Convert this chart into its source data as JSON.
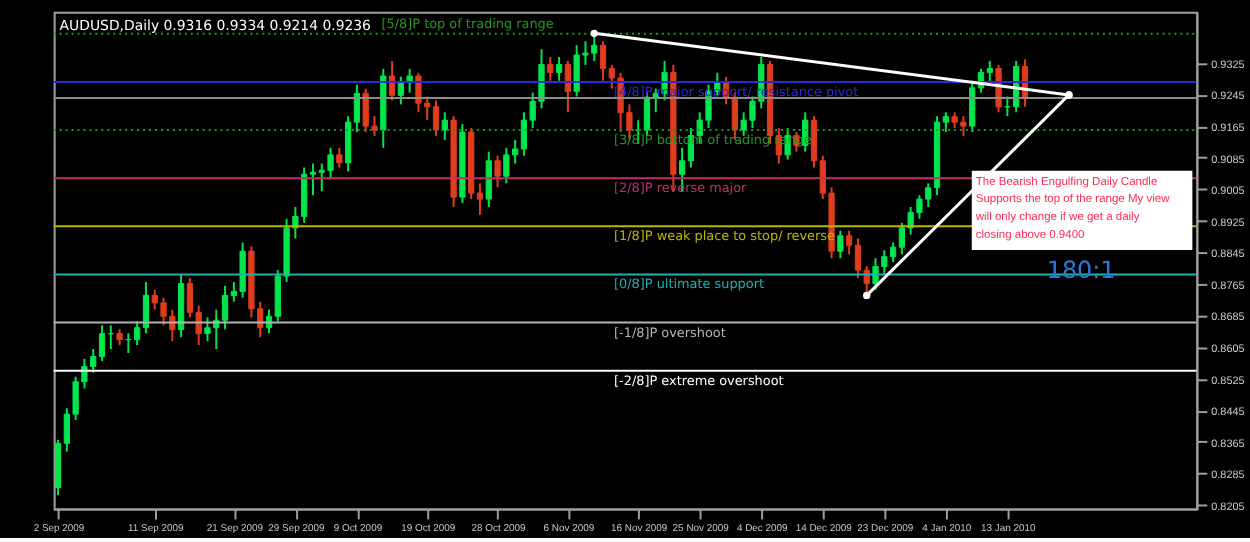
{
  "chart_data": {
    "type": "candlestick",
    "title": "AUDUSD,Daily  0.9316 0.9334 0.9214 0.9236",
    "categories": [
      "2 Sep 2009",
      null,
      null,
      null,
      null,
      null,
      null,
      null,
      null,
      null,
      null,
      "11 Sep 2009",
      null,
      null,
      null,
      null,
      null,
      null,
      null,
      null,
      "21 Sep 2009",
      null,
      null,
      null,
      null,
      null,
      null,
      "29 Sep 2009",
      null,
      null,
      null,
      null,
      null,
      null,
      "9 Oct 2009",
      null,
      null,
      null,
      null,
      null,
      null,
      null,
      "19 Oct 2009",
      null,
      null,
      null,
      null,
      null,
      null,
      null,
      "28 Oct 2009",
      null,
      null,
      null,
      null,
      null,
      null,
      null,
      "6 Nov 2009",
      null,
      null,
      null,
      null,
      null,
      null,
      null,
      "16 Nov 2009",
      null,
      null,
      null,
      null,
      null,
      null,
      "25 Nov 2009",
      null,
      null,
      null,
      null,
      null,
      null,
      "4 Dec 2009",
      null,
      null,
      null,
      null,
      null,
      null,
      "14 Dec 2009",
      null,
      null,
      null,
      null,
      null,
      null,
      "23 Dec 2009",
      null,
      null,
      null,
      null,
      null,
      null,
      "4 Jan 2010",
      null,
      null,
      null,
      null,
      null,
      null,
      "13 Jan 2010",
      null,
      null,
      null,
      null,
      null,
      null,
      null,
      null,
      null,
      null,
      null,
      null,
      null,
      null,
      null,
      null,
      null,
      null,
      null,
      null,
      null
    ],
    "ohlc": [
      [
        0.8249,
        0.837,
        0.823,
        0.8361
      ],
      [
        0.8361,
        0.845,
        0.834,
        0.8435
      ],
      [
        0.8435,
        0.853,
        0.842,
        0.8517
      ],
      [
        0.8517,
        0.8575,
        0.85,
        0.8556
      ],
      [
        0.8556,
        0.86,
        0.854,
        0.8581
      ],
      [
        0.8581,
        0.866,
        0.857,
        0.8639
      ],
      [
        0.8639,
        0.866,
        0.86,
        0.8639
      ],
      [
        0.8639,
        0.865,
        0.861,
        0.8624
      ],
      [
        0.8624,
        0.864,
        0.859,
        0.8624
      ],
      [
        0.8624,
        0.867,
        0.861,
        0.8654
      ],
      [
        0.8654,
        0.877,
        0.864,
        0.8736
      ],
      [
        0.8736,
        0.875,
        0.87,
        0.8717
      ],
      [
        0.8717,
        0.873,
        0.866,
        0.8683
      ],
      [
        0.8683,
        0.87,
        0.862,
        0.8649
      ],
      [
        0.8649,
        0.879,
        0.863,
        0.8766
      ],
      [
        0.8766,
        0.878,
        0.868,
        0.8693
      ],
      [
        0.8693,
        0.871,
        0.861,
        0.8639
      ],
      [
        0.8639,
        0.868,
        0.862,
        0.8654
      ],
      [
        0.8654,
        0.87,
        0.86,
        0.8673
      ],
      [
        0.8673,
        0.876,
        0.865,
        0.8736
      ],
      [
        0.8736,
        0.877,
        0.872,
        0.8746
      ],
      [
        0.8746,
        0.887,
        0.873,
        0.8848
      ],
      [
        0.8848,
        0.886,
        0.868,
        0.8702
      ],
      [
        0.8702,
        0.872,
        0.863,
        0.8654
      ],
      [
        0.8654,
        0.87,
        0.864,
        0.8683
      ],
      [
        0.8683,
        0.88,
        0.867,
        0.8785
      ],
      [
        0.8785,
        0.893,
        0.877,
        0.8907
      ],
      [
        0.8907,
        0.896,
        0.888,
        0.8936
      ],
      [
        0.8936,
        0.906,
        0.892,
        0.9043
      ],
      [
        0.9043,
        0.907,
        0.899,
        0.9048
      ],
      [
        0.9048,
        0.907,
        0.9,
        0.9053
      ],
      [
        0.9053,
        0.911,
        0.903,
        0.9092
      ],
      [
        0.9092,
        0.911,
        0.906,
        0.9072
      ],
      [
        0.9072,
        0.919,
        0.905,
        0.9175
      ],
      [
        0.9175,
        0.927,
        0.915,
        0.9248
      ],
      [
        0.9248,
        0.926,
        0.915,
        0.9165
      ],
      [
        0.9165,
        0.919,
        0.914,
        0.9155
      ],
      [
        0.9155,
        0.931,
        0.911,
        0.9292
      ],
      [
        0.9292,
        0.933,
        0.923,
        0.9243
      ],
      [
        0.9243,
        0.929,
        0.922,
        0.9277
      ],
      [
        0.9277,
        0.931,
        0.925,
        0.9292
      ],
      [
        0.9292,
        0.93,
        0.92,
        0.9223
      ],
      [
        0.9223,
        0.924,
        0.918,
        0.9214
      ],
      [
        0.9214,
        0.923,
        0.914,
        0.9155
      ],
      [
        0.9155,
        0.92,
        0.913,
        0.918
      ],
      [
        0.918,
        0.919,
        0.896,
        0.8985
      ],
      [
        0.8985,
        0.917,
        0.897,
        0.915
      ],
      [
        0.915,
        0.916,
        0.898,
        0.8995
      ],
      [
        0.8995,
        0.902,
        0.894,
        0.898
      ],
      [
        0.898,
        0.91,
        0.896,
        0.9077
      ],
      [
        0.9077,
        0.909,
        0.901,
        0.9038
      ],
      [
        0.9038,
        0.911,
        0.902,
        0.9092
      ],
      [
        0.9092,
        0.913,
        0.907,
        0.9107
      ],
      [
        0.9107,
        0.92,
        0.909,
        0.918
      ],
      [
        0.918,
        0.925,
        0.916,
        0.9228
      ],
      [
        0.9228,
        0.936,
        0.921,
        0.9321
      ],
      [
        0.9321,
        0.934,
        0.928,
        0.9301
      ],
      [
        0.9301,
        0.934,
        0.928,
        0.9321
      ],
      [
        0.9321,
        0.933,
        0.92,
        0.9253
      ],
      [
        0.9253,
        0.937,
        0.924,
        0.9345
      ],
      [
        0.9345,
        0.938,
        0.932,
        0.935
      ],
      [
        0.935,
        0.94,
        0.933,
        0.937
      ],
      [
        0.937,
        0.938,
        0.928,
        0.9311
      ],
      [
        0.9311,
        0.932,
        0.926,
        0.9287
      ],
      [
        0.9287,
        0.93,
        0.915,
        0.9199
      ],
      [
        0.9199,
        0.922,
        0.913,
        0.9155
      ],
      [
        0.9155,
        0.918,
        0.912,
        0.9155
      ],
      [
        0.9155,
        0.925,
        0.914,
        0.9238
      ],
      [
        0.9238,
        0.926,
        0.92,
        0.9248
      ],
      [
        0.9248,
        0.933,
        0.923,
        0.9301
      ],
      [
        0.9301,
        0.932,
        0.9,
        0.9043
      ],
      [
        0.9043,
        0.911,
        0.9,
        0.9077
      ],
      [
        0.9077,
        0.916,
        0.906,
        0.9141
      ],
      [
        0.9141,
        0.92,
        0.912,
        0.918
      ],
      [
        0.918,
        0.927,
        0.916,
        0.9253
      ],
      [
        0.9253,
        0.93,
        0.924,
        0.9277
      ],
      [
        0.9277,
        0.929,
        0.922,
        0.9238
      ],
      [
        0.9238,
        0.925,
        0.913,
        0.9155
      ],
      [
        0.9155,
        0.92,
        0.914,
        0.918
      ],
      [
        0.918,
        0.924,
        0.916,
        0.9228
      ],
      [
        0.9228,
        0.934,
        0.921,
        0.9321
      ],
      [
        0.9321,
        0.933,
        0.912,
        0.9141
      ],
      [
        0.9141,
        0.916,
        0.907,
        0.9092
      ],
      [
        0.9092,
        0.916,
        0.908,
        0.9141
      ],
      [
        0.9141,
        0.915,
        0.91,
        0.9116
      ],
      [
        0.9116,
        0.92,
        0.91,
        0.918
      ],
      [
        0.918,
        0.919,
        0.906,
        0.9077
      ],
      [
        0.9077,
        0.909,
        0.898,
        0.8995
      ],
      [
        0.8995,
        0.901,
        0.883,
        0.8848
      ],
      [
        0.8848,
        0.89,
        0.883,
        0.8887
      ],
      [
        0.8887,
        0.89,
        0.884,
        0.8863
      ],
      [
        0.8863,
        0.888,
        0.878,
        0.88
      ],
      [
        0.88,
        0.881,
        0.8736,
        0.8766
      ],
      [
        0.8766,
        0.883,
        0.875,
        0.8809
      ],
      [
        0.8809,
        0.885,
        0.879,
        0.8834
      ],
      [
        0.8834,
        0.887,
        0.882,
        0.8858
      ],
      [
        0.8858,
        0.892,
        0.884,
        0.8907
      ],
      [
        0.8907,
        0.896,
        0.889,
        0.8946
      ],
      [
        0.8946,
        0.899,
        0.893,
        0.898
      ],
      [
        0.898,
        0.902,
        0.896,
        0.9009
      ],
      [
        0.9009,
        0.919,
        0.899,
        0.9175
      ],
      [
        0.9175,
        0.92,
        0.915,
        0.9189
      ],
      [
        0.9189,
        0.92,
        0.916,
        0.9175
      ],
      [
        0.9175,
        0.919,
        0.914,
        0.9165
      ],
      [
        0.9165,
        0.928,
        0.915,
        0.9262
      ],
      [
        0.9262,
        0.931,
        0.925,
        0.9301
      ],
      [
        0.9301,
        0.933,
        0.928,
        0.9311
      ],
      [
        0.9311,
        0.932,
        0.92,
        0.9214
      ],
      [
        0.9214,
        0.924,
        0.919,
        0.9214
      ],
      [
        0.9214,
        0.933,
        0.92,
        0.9316
      ],
      [
        0.9316,
        0.9334,
        0.9214,
        0.9236
      ],
      null,
      null,
      null,
      null,
      null,
      null,
      null,
      null,
      null,
      null,
      null,
      null,
      null,
      null,
      null,
      null,
      null,
      null,
      null
    ],
    "colors": [
      "#00e64d",
      "#00e64d",
      "#00e64d",
      "#00e64d",
      "#00e64d",
      "#00e64d",
      "#00e64d",
      "#e03c1e",
      "#00e64d",
      "#00e64d",
      "#00e64d",
      "#e03c1e",
      "#e03c1e",
      "#e03c1e",
      "#00e64d",
      "#e03c1e",
      "#e03c1e",
      "#00e64d",
      "#00e64d",
      "#00e64d",
      "#00e64d",
      "#00e64d",
      "#e03c1e",
      "#e03c1e",
      "#00e64d",
      "#00e64d",
      "#00e64d",
      "#00e64d",
      "#00e64d",
      "#00e64d",
      "#00e64d",
      "#00e64d",
      "#e03c1e",
      "#00e64d",
      "#00e64d",
      "#e03c1e",
      "#e03c1e",
      "#00e64d",
      "#e03c1e",
      "#00e64d",
      "#00e64d",
      "#e03c1e",
      "#e03c1e",
      "#e03c1e",
      "#00e64d",
      "#e03c1e",
      "#00e64d",
      "#e03c1e",
      "#e03c1e",
      "#00e64d",
      "#e03c1e",
      "#00e64d",
      "#00e64d",
      "#00e64d",
      "#00e64d",
      "#00e64d",
      "#e03c1e",
      "#00e64d",
      "#e03c1e",
      "#00e64d",
      "#00e64d",
      "#00e64d",
      "#e03c1e",
      "#e03c1e",
      "#e03c1e",
      "#e03c1e",
      "#00e64d",
      "#00e64d",
      "#00e64d",
      "#00e64d",
      "#e03c1e",
      "#00e64d",
      "#00e64d",
      "#00e64d",
      "#00e64d",
      "#00e64d",
      "#e03c1e",
      "#e03c1e",
      "#00e64d",
      "#00e64d",
      "#00e64d",
      "#e03c1e",
      "#e03c1e",
      "#00e64d",
      "#e03c1e",
      "#00e64d",
      "#e03c1e",
      "#e03c1e",
      "#e03c1e",
      "#00e64d",
      "#e03c1e",
      "#e03c1e",
      "#e03c1e",
      "#00e64d",
      "#00e64d",
      "#00e64d",
      "#00e64d",
      "#00e64d",
      "#00e64d",
      "#00e64d",
      "#00e64d",
      "#00e64d",
      "#e03c1e",
      "#e03c1e",
      "#00e64d",
      "#00e64d",
      "#00e64d",
      "#e03c1e",
      "#00e64d",
      "#00e64d",
      "#e03c1e",
      null,
      null,
      null,
      null,
      null,
      null,
      null,
      null,
      null,
      null,
      null,
      null,
      null,
      null,
      null,
      null,
      null,
      null,
      null
    ],
    "series": [
      {
        "type": "line",
        "color": "#ffffff",
        "marker": "circle",
        "values": [
          null,
          null,
          null,
          null,
          null,
          null,
          null,
          null,
          null,
          null,
          null,
          null,
          null,
          null,
          null,
          null,
          null,
          null,
          null,
          null,
          null,
          null,
          null,
          null,
          null,
          null,
          null,
          null,
          null,
          null,
          null,
          null,
          null,
          null,
          null,
          null,
          null,
          null,
          null,
          null,
          null,
          null,
          null,
          null,
          null,
          null,
          null,
          null,
          null,
          null,
          null,
          null,
          null,
          null,
          null,
          null,
          null,
          null,
          null,
          null,
          null,
          0.94,
          null,
          null,
          null,
          null,
          null,
          null,
          null,
          null,
          null,
          null,
          null,
          null,
          null,
          null,
          null,
          null,
          null,
          null,
          null,
          null,
          null,
          null,
          null,
          null,
          null,
          null,
          null,
          null,
          null,
          null,
          null,
          null,
          null,
          null,
          null,
          null,
          null,
          null,
          null,
          null,
          null,
          null,
          null,
          null,
          null,
          null,
          null,
          null,
          null,
          null,
          null,
          null,
          null,
          0.9244,
          null,
          null,
          null,
          null,
          null,
          null,
          null,
          null,
          null,
          null,
          null,
          null,
          null,
          null
        ]
      },
      {
        "type": "line",
        "color": "#ffffff",
        "marker": "circle",
        "values": [
          null,
          null,
          null,
          null,
          null,
          null,
          null,
          null,
          null,
          null,
          null,
          null,
          null,
          null,
          null,
          null,
          null,
          null,
          null,
          null,
          null,
          null,
          null,
          null,
          null,
          null,
          null,
          null,
          null,
          null,
          null,
          null,
          null,
          null,
          null,
          null,
          null,
          null,
          null,
          null,
          null,
          null,
          null,
          null,
          null,
          null,
          null,
          null,
          null,
          null,
          null,
          null,
          null,
          null,
          null,
          null,
          null,
          null,
          null,
          null,
          null,
          null,
          null,
          null,
          null,
          null,
          null,
          null,
          null,
          null,
          null,
          null,
          null,
          null,
          null,
          null,
          null,
          null,
          null,
          null,
          null,
          null,
          null,
          null,
          null,
          null,
          null,
          null,
          null,
          null,
          null,
          null,
          0.8736,
          null,
          null,
          null,
          null,
          null,
          null,
          null,
          null,
          null,
          null,
          null,
          null,
          null,
          null,
          null,
          null,
          null,
          null,
          null,
          null,
          null,
          null,
          0.9244,
          null,
          null,
          null,
          null,
          null,
          null,
          null,
          null,
          null,
          null,
          null,
          null,
          null,
          null
        ]
      }
    ],
    "ylim": [
      0.8196,
      0.9455
    ],
    "yticks": [
      0.8205,
      0.8285,
      0.8365,
      0.8445,
      0.8525,
      0.8605,
      0.8685,
      0.8765,
      0.8845,
      0.8925,
      0.9005,
      0.9085,
      0.9165,
      0.9245,
      0.9325
    ],
    "ref_lines": [
      {
        "axis": "y",
        "value": 0.9399,
        "label": "[5/8]P top of trading range",
        "color": "#1f9a1f",
        "line_style": "dotted"
      },
      {
        "axis": "y",
        "value": 0.9277,
        "label": "[4/8]P major support/ resistance pivot",
        "color": "#2a2ad8",
        "line_style": "solid"
      },
      {
        "axis": "y",
        "value": 0.9236,
        "label": null,
        "color": "#8c8c8c",
        "line_style": "solid"
      },
      {
        "axis": "y",
        "value": 0.9155,
        "label": "[3/8]P bottom of trading range",
        "color": "#1f9a1f",
        "line_style": "dotted"
      },
      {
        "axis": "y",
        "value": 0.9033,
        "label": "[2/8]P reverse major",
        "color": "#c0306a",
        "line_style": "solid"
      },
      {
        "axis": "y",
        "value": 0.8911,
        "label": "[1/8]P weak place to stop/ reverse",
        "color": "#b8b800",
        "line_style": "solid"
      },
      {
        "axis": "y",
        "value": 0.8789,
        "label": "[0/8]P ultimate support",
        "color": "#20b0b0",
        "line_style": "solid"
      },
      {
        "axis": "y",
        "value": 0.8667,
        "label": "[-1/8]P overshoot",
        "color": "#b4b4b4",
        "line_style": "solid"
      },
      {
        "axis": "y",
        "value": 0.8545,
        "label": "[-2/8]P extreme overshoot",
        "color": "#ffffff",
        "line_style": "solid"
      }
    ],
    "annotations": [
      "The Bearish Engulfing Daily Candle Supports the top of the range My view will only change if we get a daily closing above 0.9400",
      "180:1"
    ]
  }
}
